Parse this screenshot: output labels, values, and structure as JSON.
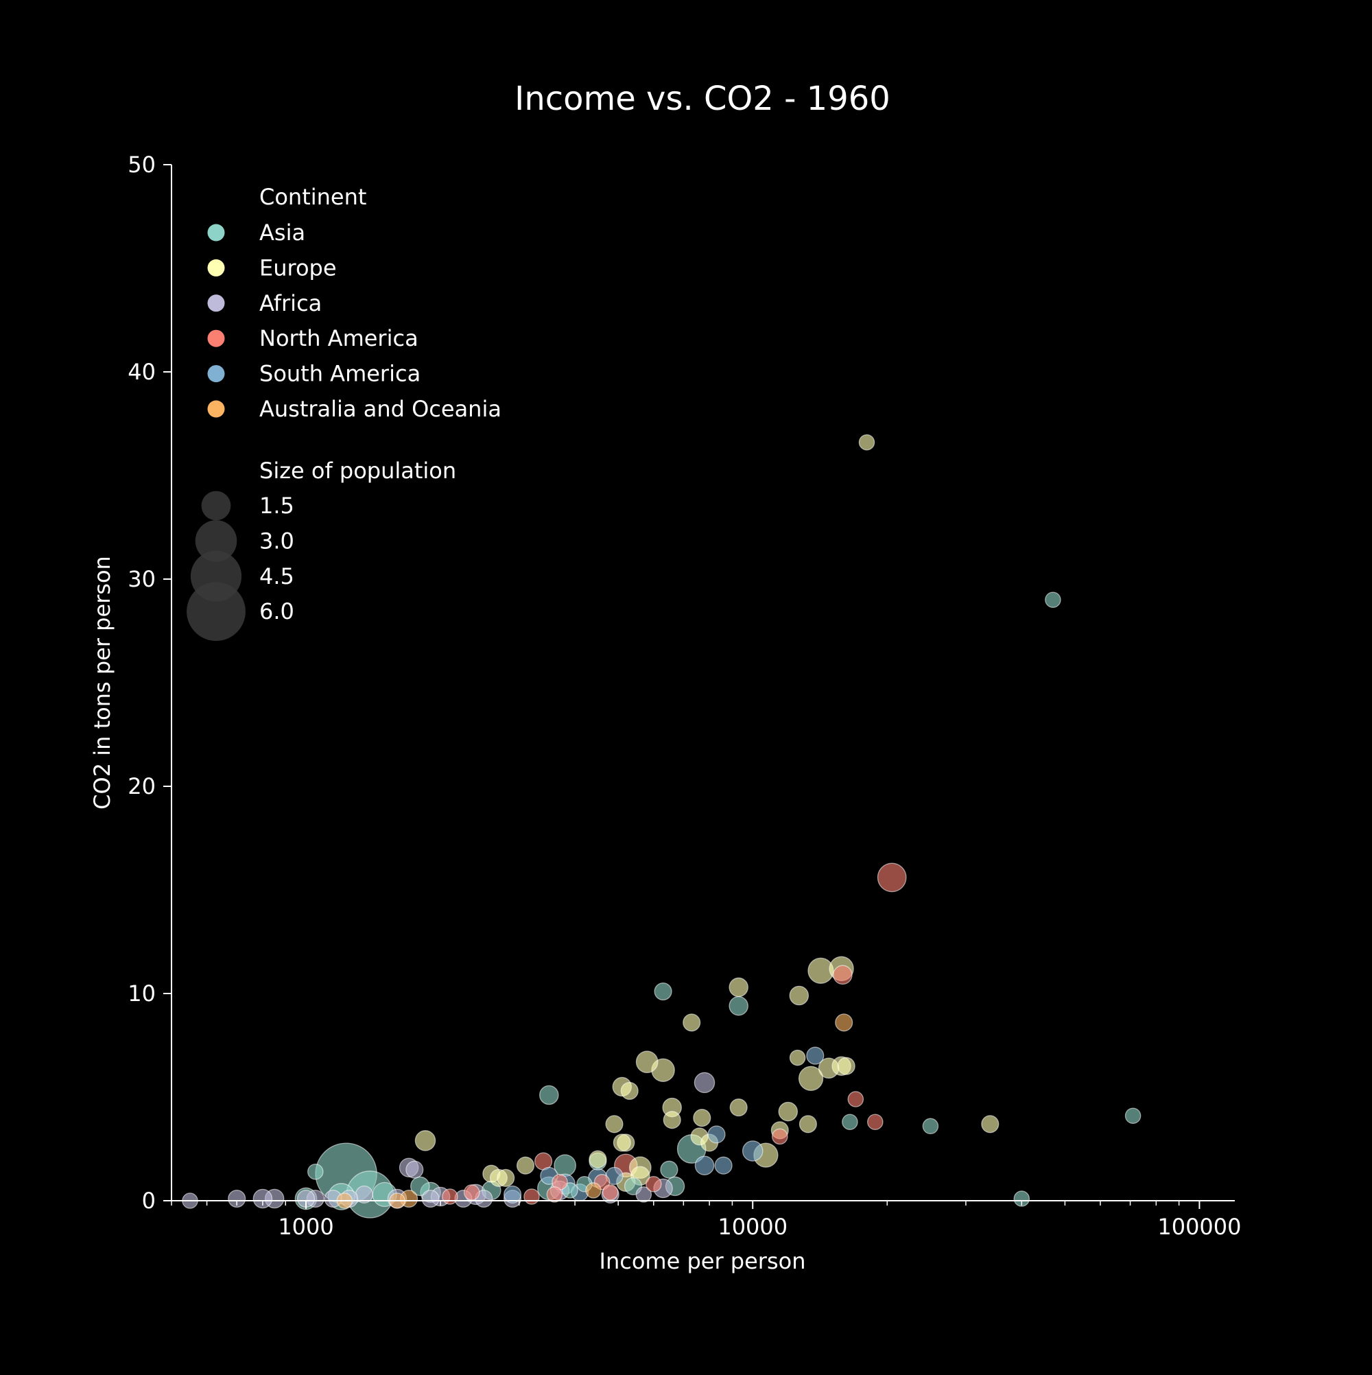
{
  "chart_data": {
    "type": "scatter",
    "title": "Income vs. CO2 - 1960",
    "xlabel": "Income per person",
    "ylabel": "CO2 in tons per person",
    "xscale": "log",
    "xlim": [
      500,
      120000
    ],
    "ylim": [
      0,
      50
    ],
    "xticks": [
      1000,
      10000,
      100000
    ],
    "xtick_labels": [
      "1000",
      "10000",
      "100000"
    ],
    "yticks": [
      0,
      10,
      20,
      30,
      40,
      50
    ],
    "ytick_labels": [
      "0",
      "10",
      "20",
      "30",
      "40",
      "50"
    ],
    "grid": false,
    "background": "#000000",
    "legend": {
      "placement": "top-left",
      "color_title": "Continent",
      "size_title": "Size of population",
      "size_entries": [
        {
          "label": "1.5",
          "value": 1.5
        },
        {
          "label": "3.0",
          "value": 3.0
        },
        {
          "label": "4.5",
          "value": 4.5
        },
        {
          "label": "6.0",
          "value": 6.0
        }
      ]
    },
    "series": [
      {
        "name": "Asia",
        "color": "#8dd3c7",
        "points": [
          {
            "x": 1230,
            "y": 1.3,
            "s": 6.5
          },
          {
            "x": 1390,
            "y": 0.3,
            "s": 3.8
          },
          {
            "x": 1200,
            "y": 0.2,
            "s": 1.2
          },
          {
            "x": 1500,
            "y": 0.3,
            "s": 1.0
          },
          {
            "x": 1050,
            "y": 1.4,
            "s": 0.4
          },
          {
            "x": 7300,
            "y": 2.5,
            "s": 1.4
          },
          {
            "x": 3500,
            "y": 0.6,
            "s": 0.9
          },
          {
            "x": 3800,
            "y": 1.7,
            "s": 0.8
          },
          {
            "x": 3500,
            "y": 5.1,
            "s": 0.6
          },
          {
            "x": 6300,
            "y": 10.1,
            "s": 0.5
          },
          {
            "x": 9300,
            "y": 9.4,
            "s": 0.6
          },
          {
            "x": 47000,
            "y": 29.0,
            "s": 0.4
          },
          {
            "x": 71000,
            "y": 4.1,
            "s": 0.4
          },
          {
            "x": 25000,
            "y": 3.6,
            "s": 0.4
          },
          {
            "x": 16500,
            "y": 3.8,
            "s": 0.4
          },
          {
            "x": 40000,
            "y": 0.1,
            "s": 0.4
          },
          {
            "x": 4500,
            "y": 1.9,
            "s": 0.5
          },
          {
            "x": 6500,
            "y": 1.5,
            "s": 0.5
          },
          {
            "x": 6700,
            "y": 0.7,
            "s": 0.6
          },
          {
            "x": 5400,
            "y": 0.7,
            "s": 0.5
          },
          {
            "x": 1800,
            "y": 0.7,
            "s": 0.6
          },
          {
            "x": 2600,
            "y": 0.5,
            "s": 0.6
          },
          {
            "x": 4200,
            "y": 0.8,
            "s": 0.4
          },
          {
            "x": 3900,
            "y": 0.5,
            "s": 0.4
          },
          {
            "x": 1900,
            "y": 0.4,
            "s": 0.7
          },
          {
            "x": 1000,
            "y": 0.1,
            "s": 0.8
          }
        ]
      },
      {
        "name": "Europe",
        "color": "#ffffb3",
        "points": [
          {
            "x": 14200,
            "y": 11.1,
            "s": 1.1
          },
          {
            "x": 15800,
            "y": 11.2,
            "s": 1.0
          },
          {
            "x": 18000,
            "y": 36.6,
            "s": 0.4
          },
          {
            "x": 9300,
            "y": 10.3,
            "s": 0.6
          },
          {
            "x": 12700,
            "y": 9.9,
            "s": 0.6
          },
          {
            "x": 7300,
            "y": 8.6,
            "s": 0.5
          },
          {
            "x": 5800,
            "y": 6.7,
            "s": 0.8
          },
          {
            "x": 6300,
            "y": 6.3,
            "s": 0.9
          },
          {
            "x": 13500,
            "y": 5.9,
            "s": 1.0
          },
          {
            "x": 14800,
            "y": 6.4,
            "s": 0.7
          },
          {
            "x": 15800,
            "y": 6.5,
            "s": 0.6
          },
          {
            "x": 16200,
            "y": 6.5,
            "s": 0.5
          },
          {
            "x": 12600,
            "y": 6.9,
            "s": 0.4
          },
          {
            "x": 5100,
            "y": 5.5,
            "s": 0.6
          },
          {
            "x": 5300,
            "y": 5.3,
            "s": 0.5
          },
          {
            "x": 6600,
            "y": 4.5,
            "s": 0.6
          },
          {
            "x": 9300,
            "y": 4.5,
            "s": 0.5
          },
          {
            "x": 12000,
            "y": 4.3,
            "s": 0.6
          },
          {
            "x": 6600,
            "y": 3.9,
            "s": 0.5
          },
          {
            "x": 7700,
            "y": 4.0,
            "s": 0.5
          },
          {
            "x": 4900,
            "y": 3.7,
            "s": 0.5
          },
          {
            "x": 13300,
            "y": 3.7,
            "s": 0.5
          },
          {
            "x": 11500,
            "y": 3.4,
            "s": 0.5
          },
          {
            "x": 34000,
            "y": 3.7,
            "s": 0.5
          },
          {
            "x": 10700,
            "y": 2.2,
            "s": 1.0
          },
          {
            "x": 1850,
            "y": 2.9,
            "s": 0.7
          },
          {
            "x": 7600,
            "y": 3.1,
            "s": 0.5
          },
          {
            "x": 8000,
            "y": 2.8,
            "s": 0.5
          },
          {
            "x": 5200,
            "y": 2.8,
            "s": 0.5
          },
          {
            "x": 5100,
            "y": 2.8,
            "s": 0.5
          },
          {
            "x": 5600,
            "y": 1.6,
            "s": 0.8
          },
          {
            "x": 5600,
            "y": 1.2,
            "s": 0.6
          },
          {
            "x": 4500,
            "y": 2.0,
            "s": 0.5
          },
          {
            "x": 3100,
            "y": 1.7,
            "s": 0.5
          },
          {
            "x": 2600,
            "y": 1.3,
            "s": 0.5
          },
          {
            "x": 2700,
            "y": 1.1,
            "s": 0.5
          },
          {
            "x": 2800,
            "y": 1.1,
            "s": 0.5
          },
          {
            "x": 5200,
            "y": 0.9,
            "s": 0.6
          }
        ]
      },
      {
        "name": "Africa",
        "color": "#bebada",
        "points": [
          {
            "x": 7800,
            "y": 5.7,
            "s": 0.7
          },
          {
            "x": 1700,
            "y": 1.6,
            "s": 0.6
          },
          {
            "x": 1750,
            "y": 1.5,
            "s": 0.5
          },
          {
            "x": 6300,
            "y": 0.6,
            "s": 0.6
          },
          {
            "x": 5700,
            "y": 0.3,
            "s": 0.4
          },
          {
            "x": 4800,
            "y": 0.3,
            "s": 0.5
          },
          {
            "x": 3700,
            "y": 0.5,
            "s": 0.6
          },
          {
            "x": 2400,
            "y": 0.3,
            "s": 0.7
          },
          {
            "x": 2000,
            "y": 0.2,
            "s": 0.6
          },
          {
            "x": 1600,
            "y": 0.1,
            "s": 0.6
          },
          {
            "x": 1350,
            "y": 0.3,
            "s": 0.5
          },
          {
            "x": 1250,
            "y": 0.1,
            "s": 0.5
          },
          {
            "x": 1150,
            "y": 0.1,
            "s": 0.5
          },
          {
            "x": 1050,
            "y": 0.1,
            "s": 0.5
          },
          {
            "x": 1000,
            "y": 0.1,
            "s": 0.5
          },
          {
            "x": 850,
            "y": 0.1,
            "s": 0.6
          },
          {
            "x": 800,
            "y": 0.1,
            "s": 0.6
          },
          {
            "x": 700,
            "y": 0.1,
            "s": 0.5
          },
          {
            "x": 550,
            "y": 0.0,
            "s": 0.4
          },
          {
            "x": 1900,
            "y": 0.1,
            "s": 0.5
          },
          {
            "x": 2250,
            "y": 0.1,
            "s": 0.5
          },
          {
            "x": 2500,
            "y": 0.1,
            "s": 0.5
          },
          {
            "x": 2900,
            "y": 0.1,
            "s": 0.5
          }
        ]
      },
      {
        "name": "North America",
        "color": "#fb8072",
        "points": [
          {
            "x": 20500,
            "y": 15.6,
            "s": 1.4
          },
          {
            "x": 15900,
            "y": 10.9,
            "s": 0.6
          },
          {
            "x": 5200,
            "y": 1.7,
            "s": 0.9
          },
          {
            "x": 3400,
            "y": 1.9,
            "s": 0.5
          },
          {
            "x": 17000,
            "y": 4.9,
            "s": 0.4
          },
          {
            "x": 18800,
            "y": 3.8,
            "s": 0.4
          },
          {
            "x": 11500,
            "y": 3.1,
            "s": 0.4
          },
          {
            "x": 3700,
            "y": 0.9,
            "s": 0.4
          },
          {
            "x": 4600,
            "y": 0.9,
            "s": 0.4
          },
          {
            "x": 6000,
            "y": 0.8,
            "s": 0.4
          },
          {
            "x": 3200,
            "y": 0.2,
            "s": 0.4
          },
          {
            "x": 3600,
            "y": 0.3,
            "s": 0.4
          },
          {
            "x": 2100,
            "y": 0.2,
            "s": 0.4
          },
          {
            "x": 2350,
            "y": 0.4,
            "s": 0.4
          },
          {
            "x": 4800,
            "y": 0.4,
            "s": 0.4
          }
        ]
      },
      {
        "name": "South America",
        "color": "#80b1d3",
        "points": [
          {
            "x": 10000,
            "y": 2.4,
            "s": 0.7
          },
          {
            "x": 7800,
            "y": 1.7,
            "s": 0.6
          },
          {
            "x": 8600,
            "y": 1.7,
            "s": 0.5
          },
          {
            "x": 8300,
            "y": 3.2,
            "s": 0.5
          },
          {
            "x": 13800,
            "y": 7.0,
            "s": 0.5
          },
          {
            "x": 4500,
            "y": 1.1,
            "s": 0.6
          },
          {
            "x": 4900,
            "y": 1.2,
            "s": 0.5
          },
          {
            "x": 3500,
            "y": 1.2,
            "s": 0.5
          },
          {
            "x": 2900,
            "y": 0.3,
            "s": 0.5
          },
          {
            "x": 3800,
            "y": 0.8,
            "s": 0.7
          },
          {
            "x": 4100,
            "y": 0.4,
            "s": 0.5
          }
        ]
      },
      {
        "name": "Australia and Oceania",
        "color": "#fdb462",
        "points": [
          {
            "x": 16000,
            "y": 8.6,
            "s": 0.5
          },
          {
            "x": 1700,
            "y": 0.1,
            "s": 0.5
          },
          {
            "x": 1600,
            "y": 0.0,
            "s": 0.4
          },
          {
            "x": 1220,
            "y": 0.0,
            "s": 0.4
          },
          {
            "x": 4400,
            "y": 0.5,
            "s": 0.4
          }
        ]
      }
    ]
  }
}
